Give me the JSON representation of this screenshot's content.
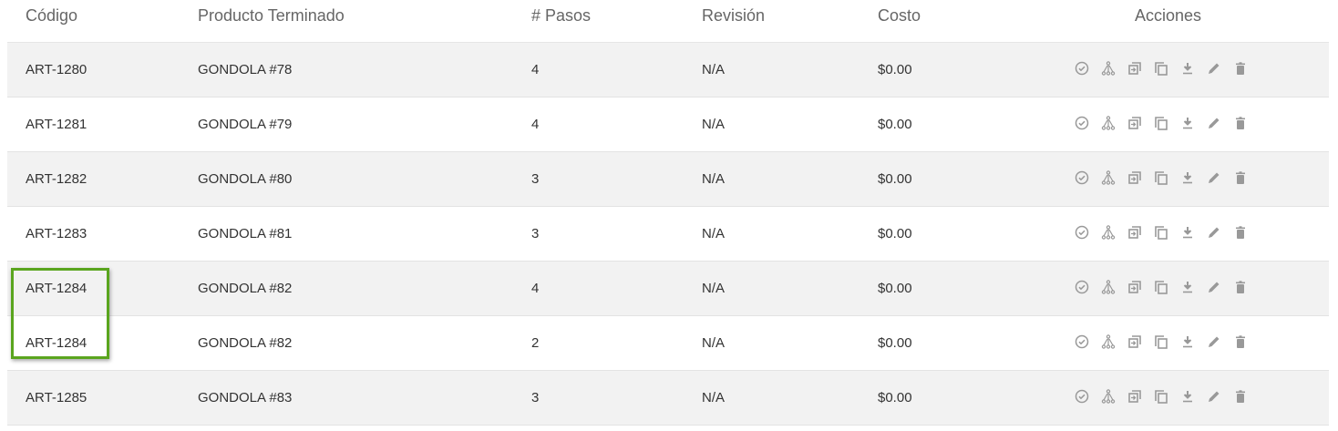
{
  "columns": [
    "Código",
    "Producto Terminado",
    "# Pasos",
    "Revisión",
    "Costo",
    "Acciones"
  ],
  "rows": [
    {
      "codigo": "ART-1280",
      "producto": "GONDOLA #78",
      "pasos": "4",
      "revision": "N/A",
      "costo": "$0.00"
    },
    {
      "codigo": "ART-1281",
      "producto": "GONDOLA #79",
      "pasos": "4",
      "revision": "N/A",
      "costo": "$0.00"
    },
    {
      "codigo": "ART-1282",
      "producto": "GONDOLA #80",
      "pasos": "3",
      "revision": "N/A",
      "costo": "$0.00"
    },
    {
      "codigo": "ART-1283",
      "producto": "GONDOLA #81",
      "pasos": "3",
      "revision": "N/A",
      "costo": "$0.00"
    },
    {
      "codigo": "ART-1284",
      "producto": "GONDOLA #82",
      "pasos": "4",
      "revision": "N/A",
      "costo": "$0.00"
    },
    {
      "codigo": "ART-1284",
      "producto": "GONDOLA #82",
      "pasos": "2",
      "revision": "N/A",
      "costo": "$0.00"
    },
    {
      "codigo": "ART-1285",
      "producto": "GONDOLA #83",
      "pasos": "3",
      "revision": "N/A",
      "costo": "$0.00"
    }
  ],
  "action_icons": [
    "check-circle-icon",
    "tree-icon",
    "copy-into-icon",
    "copy-icon",
    "download-icon",
    "edit-icon",
    "delete-icon"
  ],
  "colors": {
    "highlight": "#5aa51e",
    "icon": "#999999",
    "row_alt": "#f2f2f2"
  }
}
